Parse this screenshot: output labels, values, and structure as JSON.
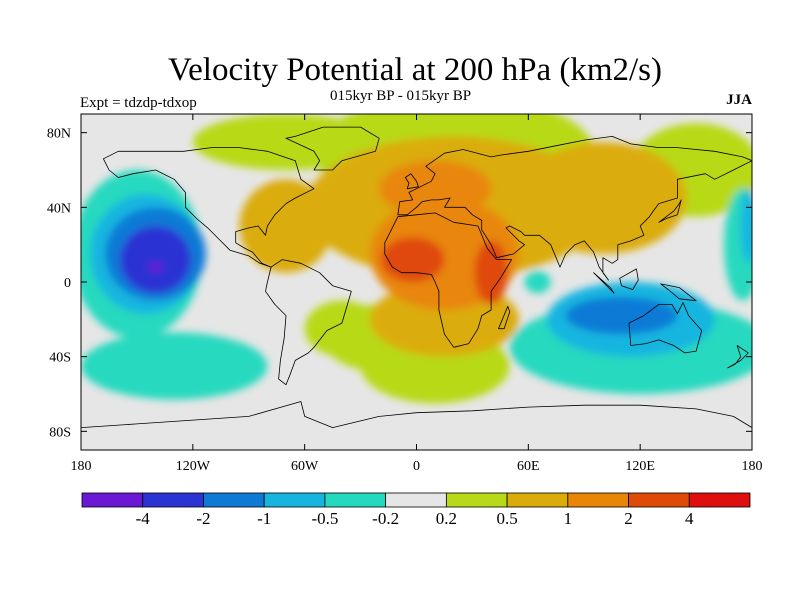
{
  "title": "Velocity Potential at 200 hPa (km2/s)",
  "subtitle": "015kyr BP - 015kyr BP",
  "left_label": "Expt = tdzdp-tdxop",
  "right_label": "JJA",
  "lon_ticks": [
    {
      "value": -180,
      "label": "180"
    },
    {
      "value": -120,
      "label": "120W"
    },
    {
      "value": -60,
      "label": "60W"
    },
    {
      "value": 0,
      "label": "0"
    },
    {
      "value": 60,
      "label": "60E"
    },
    {
      "value": 120,
      "label": "120E"
    },
    {
      "value": 180,
      "label": "180"
    }
  ],
  "lat_ticks": [
    {
      "value": 80,
      "label": "80N"
    },
    {
      "value": 40,
      "label": "40N"
    },
    {
      "value": 0,
      "label": "0"
    },
    {
      "value": -40,
      "label": "40S"
    },
    {
      "value": -80,
      "label": "80S"
    }
  ],
  "colorbar": {
    "colors": [
      "#6b18d6",
      "#2b33d4",
      "#0f7ad6",
      "#16b5e0",
      "#25d9bf",
      "#e6e6e6",
      "#b8d918",
      "#dbac09",
      "#e88607",
      "#e04a07",
      "#e00f0f"
    ],
    "labels": [
      "-4",
      "-2",
      "-1",
      "-0.5",
      "-0.2",
      "0.2",
      "0.5",
      "1",
      "2",
      "4"
    ]
  },
  "contour_fields": [
    {
      "level": "0.2 to 0.5",
      "color": "#b8d918",
      "regions": [
        {
          "lon": 20,
          "lat": 70,
          "rlon": 75,
          "rlat": 30
        },
        {
          "lon": -70,
          "lat": 75,
          "rlon": 50,
          "rlat": 15
        },
        {
          "lon": 150,
          "lat": 60,
          "rlon": 35,
          "rlat": 25
        },
        {
          "lon": -40,
          "lat": -25,
          "rlon": 20,
          "rlat": 15
        },
        {
          "lon": -20,
          "lat": -30,
          "rlon": 30,
          "rlat": 18
        },
        {
          "lon": 10,
          "lat": -45,
          "rlon": 40,
          "rlat": 20
        }
      ]
    },
    {
      "level": "0.5 to 1",
      "color": "#dbac09",
      "regions": [
        {
          "lon": 20,
          "lat": 40,
          "rlon": 80,
          "rlat": 38
        },
        {
          "lon": 100,
          "lat": 45,
          "rlon": 45,
          "rlat": 30
        },
        {
          "lon": -70,
          "lat": 30,
          "rlon": 25,
          "rlat": 25
        },
        {
          "lon": 15,
          "lat": -20,
          "rlon": 40,
          "rlat": 20
        }
      ]
    },
    {
      "level": "1 to 2",
      "color": "#e88607",
      "regions": [
        {
          "lon": 15,
          "lat": 15,
          "rlon": 40,
          "rlat": 30
        },
        {
          "lon": 10,
          "lat": 50,
          "rlon": 30,
          "rlat": 15
        }
      ]
    },
    {
      "level": "2 to 4",
      "color": "#e04a07",
      "regions": [
        {
          "lon": -2,
          "lat": 12,
          "rlon": 17,
          "rlat": 12
        },
        {
          "lon": 40,
          "lat": 5,
          "rlon": 9,
          "rlat": 17
        }
      ]
    },
    {
      "level": "-0.2 to -0.5",
      "color": "#25d9bf",
      "regions": [
        {
          "lon": -150,
          "lat": 15,
          "rlon": 35,
          "rlat": 45
        },
        {
          "lon": 120,
          "lat": -35,
          "rlon": 70,
          "rlat": 25
        },
        {
          "lon": -130,
          "lat": -45,
          "rlon": 50,
          "rlat": 18
        },
        {
          "lon": 175,
          "lat": 20,
          "rlon": 10,
          "rlat": 30
        },
        {
          "lon": 65,
          "lat": 0,
          "rlon": 7,
          "rlat": 6
        }
      ]
    },
    {
      "level": "-0.5 to -1",
      "color": "#16b5e0",
      "regions": [
        {
          "lon": -145,
          "lat": 15,
          "rlon": 30,
          "rlat": 32
        },
        {
          "lon": 115,
          "lat": -20,
          "rlon": 45,
          "rlat": 20
        },
        {
          "lon": 178,
          "lat": 30,
          "rlon": 4,
          "rlat": 20
        }
      ]
    },
    {
      "level": "-1 to -2",
      "color": "#0f7ad6",
      "regions": [
        {
          "lon": -140,
          "lat": 15,
          "rlon": 27,
          "rlat": 25
        },
        {
          "lon": 110,
          "lat": -18,
          "rlon": 30,
          "rlat": 10
        }
      ]
    },
    {
      "level": "-2 to -4",
      "color": "#2b33d4",
      "regions": [
        {
          "lon": -140,
          "lat": 12,
          "rlon": 19,
          "rlat": 18
        }
      ]
    },
    {
      "level": "< -4",
      "color": "#6b18d6",
      "regions": [
        {
          "lon": -140,
          "lat": 8,
          "rlon": 4,
          "rlat": 2.5
        }
      ]
    }
  ],
  "coastlines": [
    {
      "name": "north-america",
      "points": [
        [
          -168,
          66
        ],
        [
          -160,
          70
        ],
        [
          -140,
          70
        ],
        [
          -125,
          70
        ],
        [
          -110,
          72
        ],
        [
          -95,
          72
        ],
        [
          -80,
          70
        ],
        [
          -65,
          65
        ],
        [
          -62,
          55
        ],
        [
          -55,
          50
        ],
        [
          -65,
          45
        ],
        [
          -70,
          42
        ],
        [
          -76,
          36
        ],
        [
          -80,
          30
        ],
        [
          -81,
          25
        ],
        [
          -85,
          30
        ],
        [
          -90,
          29
        ],
        [
          -97,
          27
        ],
        [
          -97,
          21
        ],
        [
          -92,
          18
        ],
        [
          -88,
          16
        ],
        [
          -83,
          10
        ],
        [
          -78,
          8
        ],
        [
          -84,
          10
        ],
        [
          -90,
          14
        ],
        [
          -100,
          17
        ],
        [
          -106,
          23
        ],
        [
          -112,
          29
        ],
        [
          -118,
          34
        ],
        [
          -124,
          40
        ],
        [
          -124,
          48
        ],
        [
          -130,
          55
        ],
        [
          -140,
          60
        ],
        [
          -152,
          58
        ],
        [
          -160,
          56
        ],
        [
          -165,
          60
        ]
      ]
    },
    {
      "name": "greenland",
      "points": [
        [
          -55,
          60
        ],
        [
          -45,
          60
        ],
        [
          -40,
          65
        ],
        [
          -22,
          70
        ],
        [
          -20,
          77
        ],
        [
          -30,
          83
        ],
        [
          -50,
          83
        ],
        [
          -65,
          78
        ],
        [
          -70,
          77
        ],
        [
          -55,
          70
        ],
        [
          -52,
          65
        ]
      ]
    },
    {
      "name": "south-america",
      "points": [
        [
          -78,
          8
        ],
        [
          -72,
          12
        ],
        [
          -62,
          10
        ],
        [
          -52,
          5
        ],
        [
          -45,
          -2
        ],
        [
          -35,
          -5
        ],
        [
          -37,
          -12
        ],
        [
          -40,
          -22
        ],
        [
          -48,
          -26
        ],
        [
          -55,
          -35
        ],
        [
          -58,
          -38
        ],
        [
          -65,
          -42
        ],
        [
          -68,
          -50
        ],
        [
          -70,
          -55
        ],
        [
          -74,
          -52
        ],
        [
          -73,
          -42
        ],
        [
          -71,
          -30
        ],
        [
          -70,
          -18
        ],
        [
          -76,
          -12
        ],
        [
          -81,
          -5
        ],
        [
          -80,
          0
        ],
        [
          -78,
          8
        ]
      ]
    },
    {
      "name": "africa",
      "points": [
        [
          -17,
          21
        ],
        [
          -17,
          15
        ],
        [
          -13,
          8
        ],
        [
          -8,
          5
        ],
        [
          0,
          5
        ],
        [
          8,
          4
        ],
        [
          10,
          0
        ],
        [
          12,
          -5
        ],
        [
          12,
          -15
        ],
        [
          15,
          -28
        ],
        [
          20,
          -35
        ],
        [
          28,
          -33
        ],
        [
          33,
          -25
        ],
        [
          35,
          -18
        ],
        [
          40,
          -15
        ],
        [
          40,
          -5
        ],
        [
          45,
          2
        ],
        [
          51,
          12
        ],
        [
          43,
          12
        ],
        [
          38,
          18
        ],
        [
          33,
          30
        ],
        [
          20,
          32
        ],
        [
          10,
          37
        ],
        [
          0,
          36
        ],
        [
          -10,
          35
        ],
        [
          -17,
          21
        ]
      ]
    },
    {
      "name": "madagascar",
      "points": [
        [
          44,
          -25
        ],
        [
          49,
          -13
        ],
        [
          50,
          -16
        ],
        [
          47,
          -25
        ]
      ]
    },
    {
      "name": "eurasia",
      "points": [
        [
          -10,
          36
        ],
        [
          -9,
          43
        ],
        [
          -2,
          44
        ],
        [
          -4,
          48
        ],
        [
          0,
          50
        ],
        [
          8,
          54
        ],
        [
          10,
          58
        ],
        [
          5,
          62
        ],
        [
          15,
          69
        ],
        [
          25,
          71
        ],
        [
          40,
          67
        ],
        [
          45,
          68
        ],
        [
          60,
          70
        ],
        [
          75,
          73
        ],
        [
          90,
          76
        ],
        [
          105,
          78
        ],
        [
          115,
          74
        ],
        [
          130,
          72
        ],
        [
          140,
          72
        ],
        [
          160,
          70
        ],
        [
          175,
          67
        ],
        [
          180,
          65
        ],
        [
          170,
          60
        ],
        [
          160,
          55
        ],
        [
          155,
          58
        ],
        [
          140,
          55
        ],
        [
          140,
          45
        ],
        [
          130,
          42
        ],
        [
          127,
          38
        ],
        [
          125,
          35
        ],
        [
          120,
          30
        ],
        [
          122,
          25
        ],
        [
          115,
          22
        ],
        [
          108,
          20
        ],
        [
          108,
          12
        ],
        [
          105,
          10
        ],
        [
          100,
          13
        ],
        [
          100,
          5
        ],
        [
          103,
          1
        ],
        [
          98,
          8
        ],
        [
          95,
          16
        ],
        [
          90,
          22
        ],
        [
          85,
          20
        ],
        [
          80,
          15
        ],
        [
          77,
          8
        ],
        [
          72,
          20
        ],
        [
          66,
          25
        ],
        [
          58,
          25
        ],
        [
          56,
          27
        ],
        [
          50,
          30
        ],
        [
          48,
          29
        ],
        [
          55,
          22
        ],
        [
          58,
          20
        ],
        [
          52,
          15
        ],
        [
          43,
          13
        ],
        [
          40,
          20
        ],
        [
          35,
          28
        ],
        [
          35,
          33
        ],
        [
          30,
          36
        ],
        [
          26,
          40
        ],
        [
          20,
          40
        ],
        [
          15,
          40
        ],
        [
          18,
          45
        ],
        [
          12,
          44
        ],
        [
          8,
          44
        ],
        [
          3,
          43
        ],
        [
          0,
          40
        ],
        [
          -5,
          36
        ],
        [
          -10,
          36
        ]
      ]
    },
    {
      "name": "japan",
      "points": [
        [
          130,
          32
        ],
        [
          134,
          34
        ],
        [
          140,
          36
        ],
        [
          141,
          40
        ],
        [
          142,
          44
        ],
        [
          141,
          42
        ],
        [
          138,
          38
        ],
        [
          134,
          35
        ]
      ]
    },
    {
      "name": "uk",
      "points": [
        [
          -5,
          50
        ],
        [
          1,
          51
        ],
        [
          0,
          54
        ],
        [
          -3,
          58
        ],
        [
          -6,
          56
        ],
        [
          -4,
          53
        ]
      ]
    },
    {
      "name": "australia",
      "points": [
        [
          114,
          -22
        ],
        [
          122,
          -18
        ],
        [
          130,
          -12
        ],
        [
          137,
          -12
        ],
        [
          140,
          -17
        ],
        [
          143,
          -11
        ],
        [
          146,
          -18
        ],
        [
          153,
          -26
        ],
        [
          150,
          -37
        ],
        [
          144,
          -38
        ],
        [
          138,
          -34
        ],
        [
          130,
          -31
        ],
        [
          123,
          -33
        ],
        [
          115,
          -34
        ],
        [
          114,
          -22
        ]
      ]
    },
    {
      "name": "borneo",
      "points": [
        [
          109,
          2
        ],
        [
          118,
          7
        ],
        [
          119,
          1
        ],
        [
          116,
          -4
        ],
        [
          110,
          -2
        ]
      ]
    },
    {
      "name": "sumatra",
      "points": [
        [
          95,
          5
        ],
        [
          104,
          -3
        ],
        [
          106,
          -6
        ],
        [
          100,
          0
        ]
      ]
    },
    {
      "name": "new-guinea",
      "points": [
        [
          131,
          -1
        ],
        [
          141,
          -3
        ],
        [
          150,
          -10
        ],
        [
          141,
          -9
        ],
        [
          135,
          -4
        ]
      ]
    },
    {
      "name": "new-zealand",
      "points": [
        [
          172,
          -34
        ],
        [
          178,
          -38
        ],
        [
          174,
          -42
        ],
        [
          167,
          -46
        ],
        [
          171,
          -44
        ],
        [
          174,
          -40
        ]
      ]
    },
    {
      "name": "antarctica",
      "points": [
        [
          -180,
          -78
        ],
        [
          -150,
          -76
        ],
        [
          -120,
          -74
        ],
        [
          -90,
          -72
        ],
        [
          -62,
          -64
        ],
        [
          -60,
          -72
        ],
        [
          -45,
          -78
        ],
        [
          -20,
          -72
        ],
        [
          0,
          -70
        ],
        [
          30,
          -69
        ],
        [
          60,
          -67
        ],
        [
          90,
          -66
        ],
        [
          120,
          -66
        ],
        [
          150,
          -68
        ],
        [
          170,
          -72
        ],
        [
          180,
          -78
        ]
      ]
    }
  ]
}
